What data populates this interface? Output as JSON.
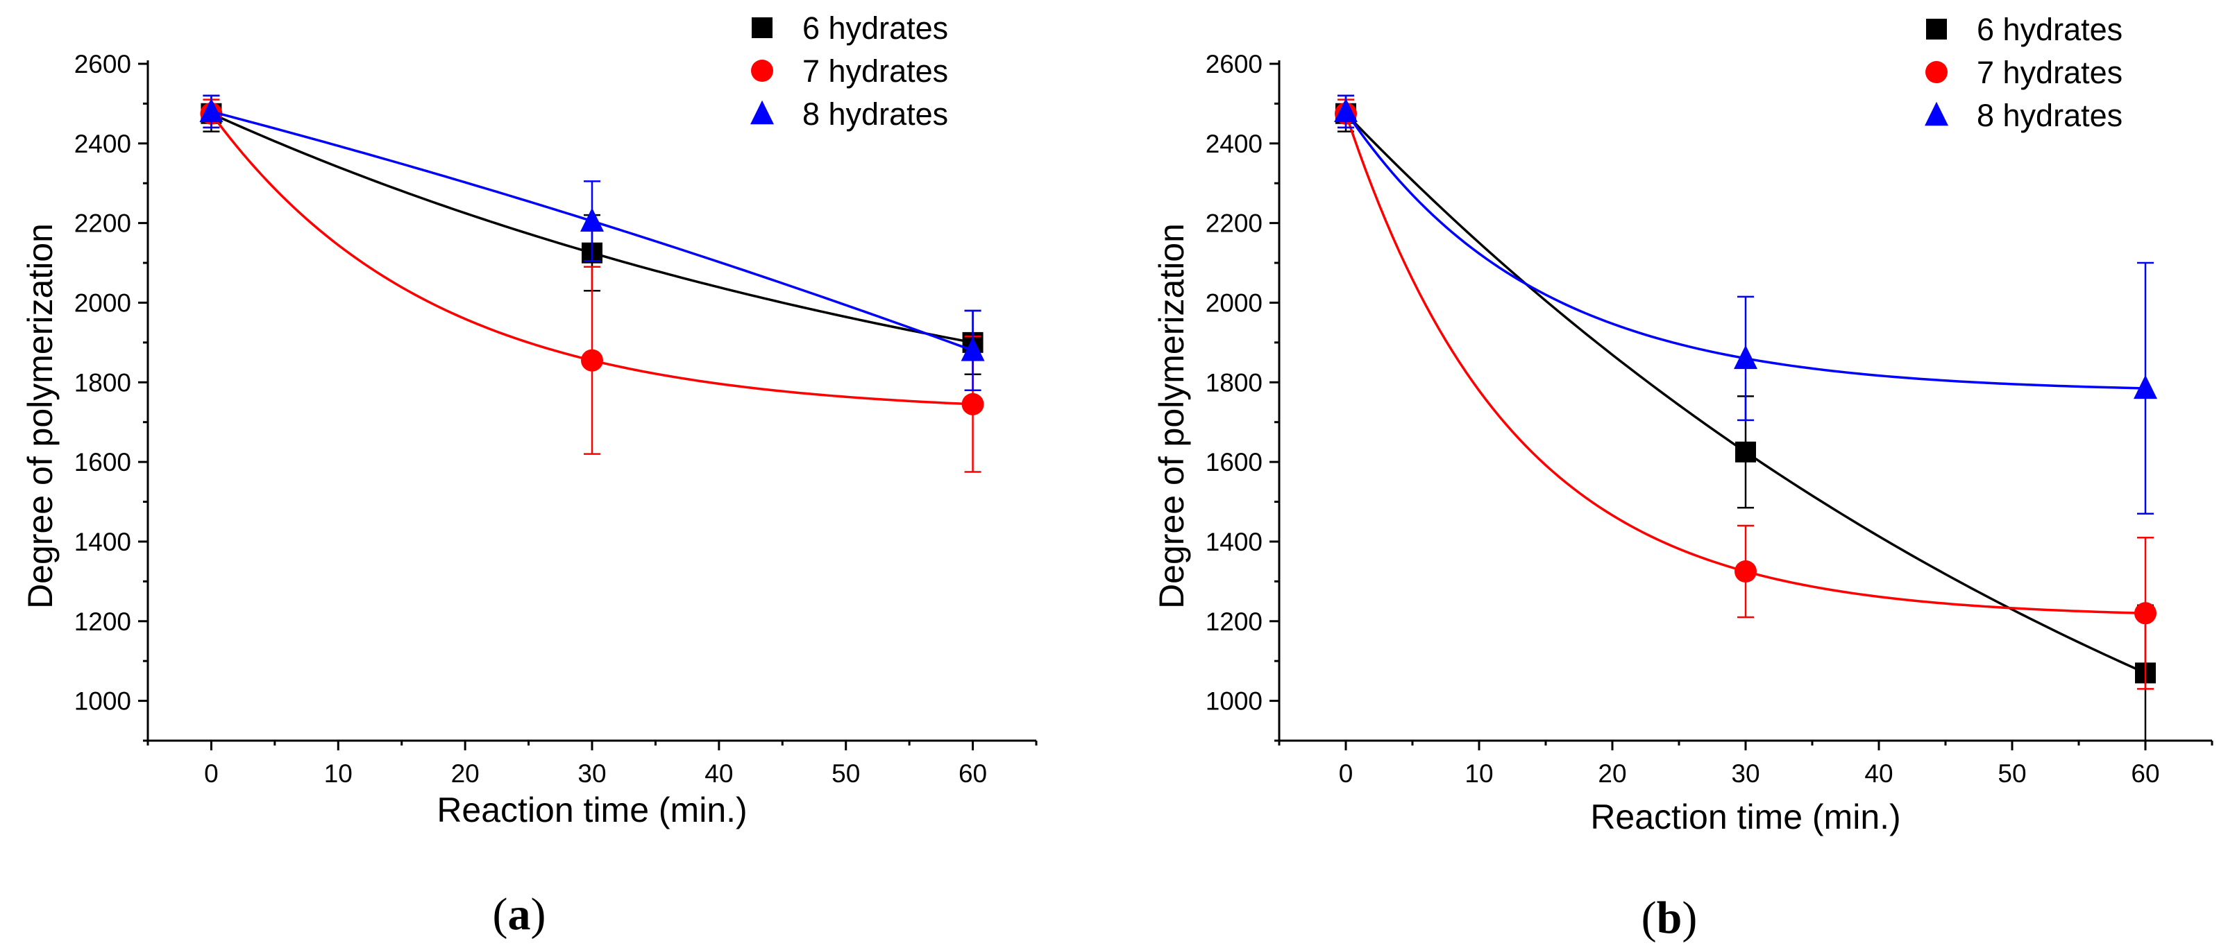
{
  "chart_data": [
    {
      "type": "scatter",
      "panel_label": "(a)",
      "panel_letter": "a",
      "xlabel": "Reaction time (min.)",
      "ylabel": "Degree of polymerization",
      "xlim": [
        -5,
        65
      ],
      "ylim": [
        900,
        2600
      ],
      "xticks": [
        0,
        10,
        20,
        30,
        40,
        50,
        60
      ],
      "yticks": [
        1000,
        1200,
        1400,
        1600,
        1800,
        2000,
        2200,
        2400,
        2600
      ],
      "legend_position": "top-right",
      "series": [
        {
          "name": "6 hydrates",
          "marker": "square",
          "color": "#000000",
          "x": [
            0,
            30,
            60
          ],
          "y": [
            2475,
            2125,
            1900
          ],
          "err": [
            45,
            95,
            80
          ]
        },
        {
          "name": "7 hydrates",
          "marker": "circle",
          "color": "#ff0000",
          "x": [
            0,
            30,
            60
          ],
          "y": [
            2475,
            1855,
            1745
          ],
          "err": [
            35,
            235,
            170
          ]
        },
        {
          "name": "8 hydrates",
          "marker": "triangle",
          "color": "#0000ff",
          "x": [
            0,
            30,
            60
          ],
          "y": [
            2480,
            2205,
            1880
          ],
          "err": [
            40,
            100,
            100
          ]
        }
      ]
    },
    {
      "type": "scatter",
      "panel_label": "(b)",
      "panel_letter": "b",
      "xlabel": "Reaction time (min.)",
      "ylabel": "Degree of polymerization",
      "xlim": [
        -5,
        65
      ],
      "ylim": [
        900,
        2600
      ],
      "xticks": [
        0,
        10,
        20,
        30,
        40,
        50,
        60
      ],
      "yticks": [
        1000,
        1200,
        1400,
        1600,
        1800,
        2000,
        2200,
        2400,
        2600
      ],
      "legend_position": "top-right",
      "series": [
        {
          "name": "6 hydrates",
          "marker": "square",
          "color": "#000000",
          "x": [
            0,
            30,
            60
          ],
          "y": [
            2475,
            1625,
            1070
          ],
          "err": [
            45,
            140,
            170
          ]
        },
        {
          "name": "7 hydrates",
          "marker": "circle",
          "color": "#ff0000",
          "x": [
            0,
            30,
            60
          ],
          "y": [
            2475,
            1325,
            1220
          ],
          "err": [
            35,
            115,
            190
          ]
        },
        {
          "name": "8 hydrates",
          "marker": "triangle",
          "color": "#0000ff",
          "x": [
            0,
            30,
            60
          ],
          "y": [
            2480,
            1860,
            1785
          ],
          "err": [
            40,
            155,
            315
          ]
        }
      ]
    }
  ]
}
